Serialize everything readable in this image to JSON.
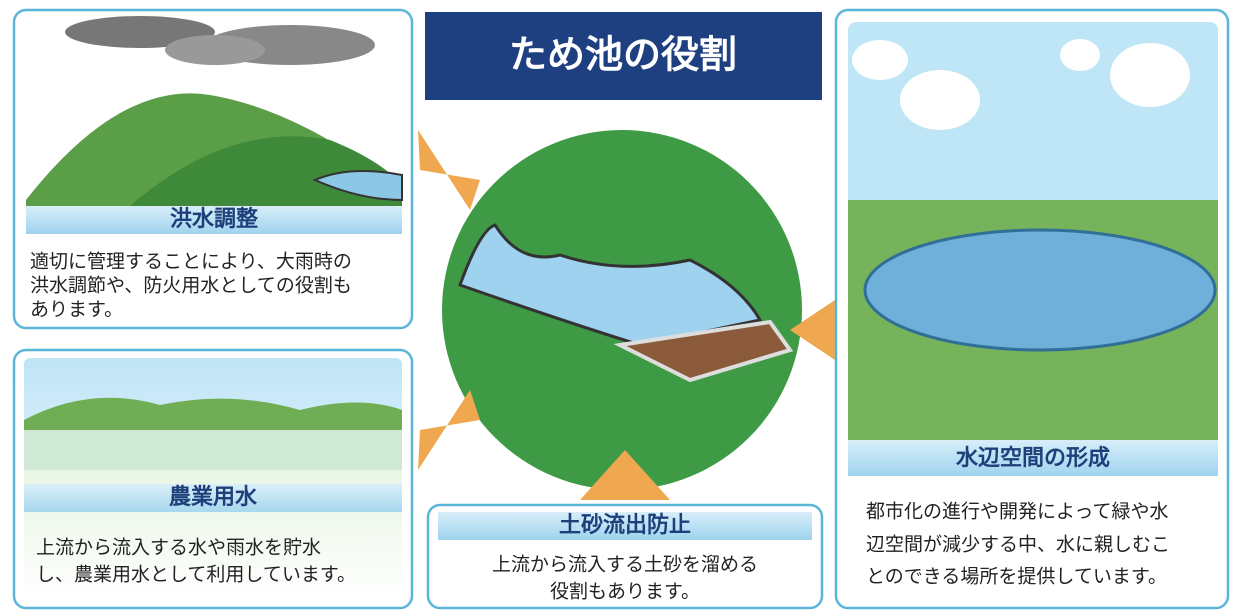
{
  "title": "ため池の役割",
  "panels": [
    {
      "heading": "洪水調整",
      "lines": [
        "適切に管理することにより、大雨時の",
        "洪水調節や、防火用水としての役割も",
        "あります。"
      ]
    },
    {
      "heading": "農業用水",
      "lines": [
        "上流から流入する水や雨水を貯水",
        "し、農業用水として利用しています。"
      ]
    },
    {
      "heading": "土砂流出防止",
      "lines": [
        "上流から流入する土砂を溜める",
        "役割もあります。"
      ]
    },
    {
      "heading": "水辺空間の形成",
      "lines": [
        "都市化の進行や開発によって緑や水",
        "辺空間が減少する中、水に親しむこ",
        "とのできる場所を提供しています。"
      ]
    }
  ]
}
